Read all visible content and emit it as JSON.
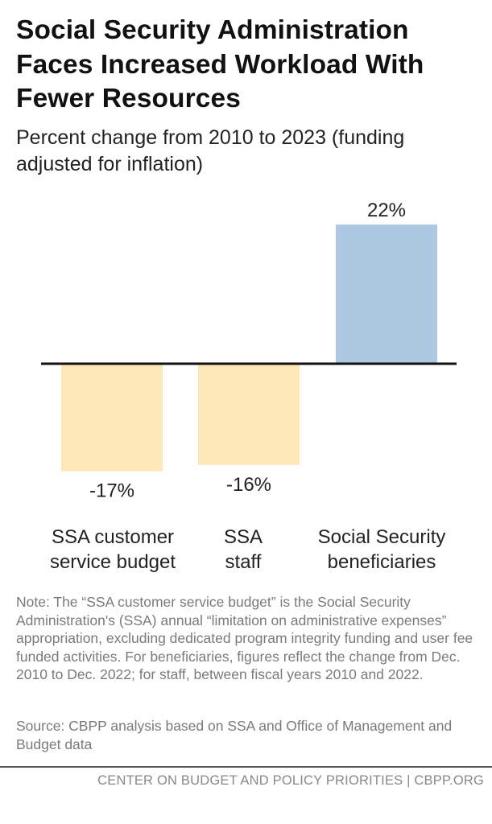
{
  "chart_data": {
    "type": "bar",
    "title": "Social Security Administration Faces Increased Workload With Fewer Resources",
    "subtitle": "Percent change from 2010 to 2023 (funding adjusted for inflation)",
    "categories": [
      "SSA customer service budget",
      "SSA staff",
      "Social Security beneficiaries"
    ],
    "category_lines": [
      [
        "SSA customer",
        "service budget"
      ],
      [
        "SSA",
        "staff"
      ],
      [
        "Social Security",
        "beneficiaries"
      ]
    ],
    "values": [
      -17,
      -16,
      22
    ],
    "data_labels": [
      "-17%",
      "-16%",
      "22%"
    ],
    "colors": [
      "#fde6b8",
      "#fde6b8",
      "#abc8e0"
    ],
    "axis_color": "#111111",
    "ylim": [
      -17,
      22
    ],
    "grid": false,
    "legend": "none"
  },
  "note": "Note: The “SSA customer service budget” is the Social Security Administration's (SSA) annual “limitation on administrative expenses” appropriation, excluding dedicated program integrity funding and user fee funded activities. For beneficiaries, figures reflect the change from Dec. 2010 to Dec. 2022; for staff, between fiscal years 2010 and 2022.",
  "source": "Source: CBPP analysis based on SSA and Office of Management and Budget data",
  "footer": "CENTER ON BUDGET AND POLICY PRIORITIES | CBPP.ORG"
}
